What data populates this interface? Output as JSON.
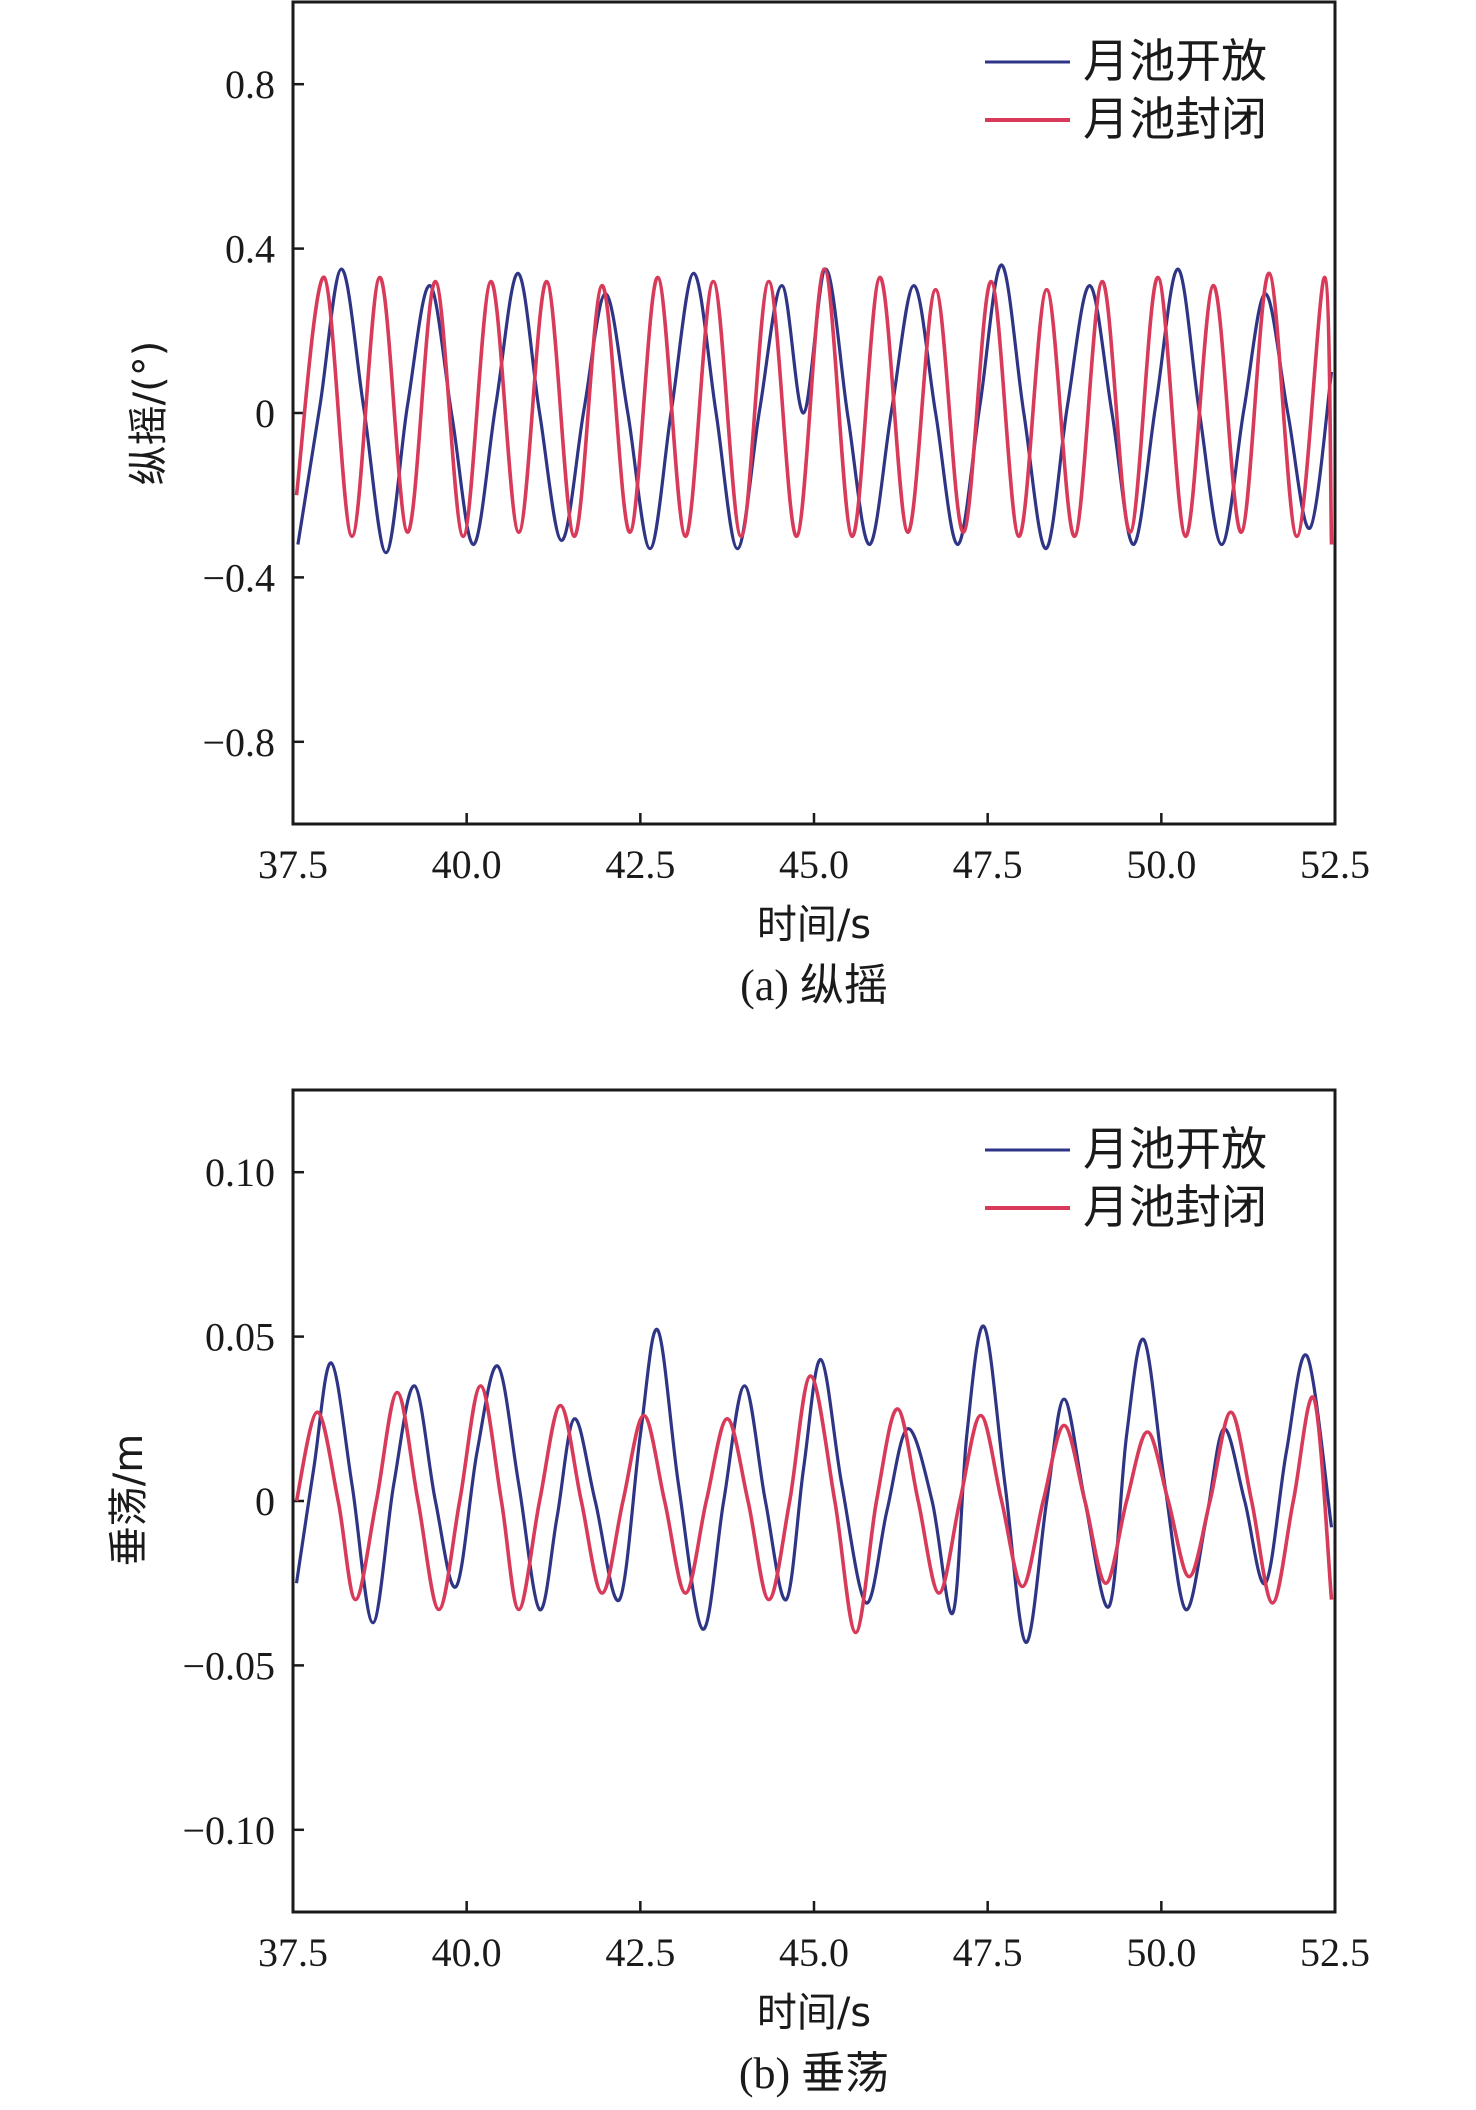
{
  "chart_data": [
    {
      "type": "line",
      "caption": "(a) 纵摇",
      "xlabel": "时间/s",
      "ylabel": "纵摇/(°)",
      "xlim": [
        37.5,
        52.5
      ],
      "ylim": [
        -1.0,
        1.0
      ],
      "x_ticks": [
        37.5,
        40.0,
        42.5,
        45.0,
        47.5,
        50.0,
        52.5
      ],
      "x_tick_labels": [
        "37.5",
        "40.0",
        "42.5",
        "45.0",
        "47.5",
        "50.0",
        "52.5"
      ],
      "y_ticks": [
        0.8,
        0.4,
        0,
        -0.4,
        -0.8
      ],
      "y_tick_labels": [
        "0.8",
        "0.4",
        "0",
        "−0.4",
        "−0.8"
      ],
      "grid": false,
      "legend_position": "top-right",
      "series": [
        {
          "name": "月池开放",
          "color": "#2f3585",
          "x": [
            37.57,
            37.89,
            38.2,
            38.52,
            38.84,
            39.15,
            39.47,
            39.79,
            40.1,
            40.42,
            40.74,
            41.05,
            41.37,
            41.69,
            42.0,
            42.32,
            42.64,
            42.95,
            43.27,
            43.59,
            43.9,
            44.22,
            44.54,
            44.85,
            45.17,
            45.49,
            45.8,
            46.12,
            46.44,
            46.75,
            47.07,
            47.39,
            47.7,
            48.02,
            48.34,
            48.65,
            48.97,
            49.29,
            49.6,
            49.92,
            50.24,
            50.55,
            50.87,
            51.19,
            51.5,
            51.82,
            52.14,
            52.45
          ],
          "y": [
            -0.32,
            0.02,
            0.35,
            0.01,
            -0.34,
            0.02,
            0.31,
            -0.01,
            -0.32,
            0.02,
            0.34,
            0.0,
            -0.31,
            0.01,
            0.29,
            0.0,
            -0.33,
            0.01,
            0.34,
            0.0,
            -0.33,
            0.01,
            0.31,
            0.0,
            0.35,
            -0.01,
            -0.32,
            0.01,
            0.31,
            0.0,
            -0.32,
            0.02,
            0.36,
            0.0,
            -0.33,
            0.02,
            0.31,
            0.0,
            -0.32,
            0.02,
            0.35,
            0.0,
            -0.32,
            0.01,
            0.29,
            0.0,
            -0.28,
            0.1
          ]
        },
        {
          "name": "月池封闭",
          "color": "#d83a5a",
          "x": [
            37.55,
            37.95,
            38.35,
            38.75,
            39.15,
            39.55,
            39.95,
            40.35,
            40.75,
            41.15,
            41.55,
            41.95,
            42.35,
            42.75,
            43.15,
            43.55,
            43.95,
            44.35,
            44.75,
            45.15,
            45.55,
            45.95,
            46.35,
            46.75,
            47.15,
            47.55,
            47.95,
            48.35,
            48.75,
            49.15,
            49.55,
            49.95,
            50.35,
            50.75,
            51.15,
            51.55,
            51.95,
            52.35,
            52.45
          ],
          "y": [
            -0.2,
            0.33,
            -0.3,
            0.33,
            -0.29,
            0.32,
            -0.3,
            0.32,
            -0.29,
            0.32,
            -0.3,
            0.31,
            -0.29,
            0.33,
            -0.3,
            0.32,
            -0.3,
            0.32,
            -0.3,
            0.35,
            -0.3,
            0.33,
            -0.29,
            0.3,
            -0.29,
            0.32,
            -0.3,
            0.3,
            -0.3,
            0.32,
            -0.29,
            0.33,
            -0.3,
            0.31,
            -0.29,
            0.34,
            -0.3,
            0.33,
            -0.32
          ]
        }
      ]
    },
    {
      "type": "line",
      "caption": "(b) 垂荡",
      "xlabel": "时间/s",
      "ylabel": "垂荡/m",
      "xlim": [
        37.5,
        52.5
      ],
      "ylim": [
        -0.125,
        0.125
      ],
      "x_ticks": [
        37.5,
        40.0,
        42.5,
        45.0,
        47.5,
        50.0,
        52.5
      ],
      "x_tick_labels": [
        "37.5",
        "40.0",
        "42.5",
        "45.0",
        "47.5",
        "50.0",
        "52.5"
      ],
      "y_ticks": [
        0.1,
        0.05,
        0,
        -0.05,
        -0.1
      ],
      "y_tick_labels": [
        "0.10",
        "0.05",
        "0",
        "−0.05",
        "−0.10"
      ],
      "grid": false,
      "legend_position": "top-right",
      "series": [
        {
          "name": "月池开放",
          "color": "#2f3585",
          "x": [
            37.55,
            37.8,
            38.05,
            38.35,
            38.65,
            38.95,
            39.25,
            39.55,
            39.85,
            40.15,
            40.45,
            40.75,
            41.05,
            41.3,
            41.55,
            41.85,
            42.2,
            42.5,
            42.75,
            43.05,
            43.4,
            43.7,
            44.0,
            44.3,
            44.6,
            44.85,
            45.1,
            45.4,
            45.75,
            46.05,
            46.35,
            46.7,
            47.0,
            47.2,
            47.45,
            47.75,
            48.05,
            48.35,
            48.6,
            48.9,
            49.25,
            49.5,
            49.75,
            50.05,
            50.35,
            50.65,
            50.9,
            51.2,
            51.5,
            51.8,
            52.1,
            52.45
          ],
          "y": [
            -0.025,
            0.01,
            0.042,
            0.005,
            -0.037,
            0.005,
            0.035,
            0.0,
            -0.026,
            0.015,
            0.041,
            0.005,
            -0.033,
            -0.005,
            0.025,
            0.0,
            -0.03,
            0.02,
            0.052,
            0.005,
            -0.039,
            0.0,
            0.035,
            0.0,
            -0.03,
            0.01,
            0.043,
            0.005,
            -0.031,
            -0.003,
            0.022,
            0.0,
            -0.034,
            0.02,
            0.053,
            0.005,
            -0.043,
            0.0,
            0.031,
            0.0,
            -0.032,
            0.02,
            0.049,
            0.005,
            -0.033,
            -0.005,
            0.022,
            0.0,
            -0.025,
            0.015,
            0.044,
            -0.008
          ]
        },
        {
          "name": "月池封闭",
          "color": "#d83a5a",
          "x": [
            37.55,
            37.85,
            38.15,
            38.4,
            38.7,
            39.0,
            39.3,
            39.6,
            39.9,
            40.2,
            40.5,
            40.75,
            41.05,
            41.35,
            41.65,
            41.95,
            42.25,
            42.55,
            42.85,
            43.15,
            43.45,
            43.75,
            44.05,
            44.35,
            44.65,
            44.95,
            45.3,
            45.6,
            45.9,
            46.2,
            46.5,
            46.8,
            47.1,
            47.4,
            47.7,
            48.0,
            48.3,
            48.6,
            48.9,
            49.2,
            49.5,
            49.8,
            50.1,
            50.4,
            50.7,
            51.0,
            51.3,
            51.6,
            51.9,
            52.2,
            52.45
          ],
          "y": [
            0.0,
            0.027,
            0.0,
            -0.03,
            0.0,
            0.033,
            0.0,
            -0.033,
            0.0,
            0.035,
            0.0,
            -0.033,
            0.0,
            0.029,
            0.0,
            -0.028,
            0.0,
            0.026,
            0.0,
            -0.028,
            0.0,
            0.025,
            0.0,
            -0.03,
            0.0,
            0.038,
            0.0,
            -0.04,
            0.0,
            0.028,
            0.0,
            -0.028,
            0.0,
            0.026,
            0.0,
            -0.026,
            0.0,
            0.023,
            0.0,
            -0.025,
            0.0,
            0.021,
            0.0,
            -0.023,
            0.0,
            0.027,
            0.0,
            -0.031,
            0.0,
            0.031,
            -0.03
          ]
        }
      ]
    }
  ]
}
